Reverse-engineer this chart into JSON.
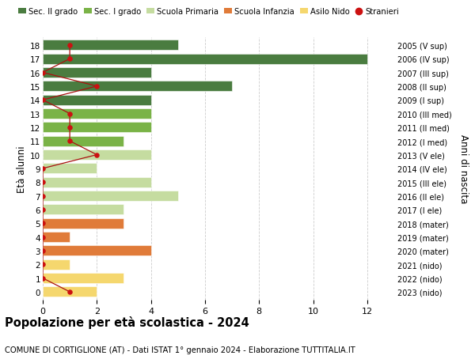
{
  "ages": [
    18,
    17,
    16,
    15,
    14,
    13,
    12,
    11,
    10,
    9,
    8,
    7,
    6,
    5,
    4,
    3,
    2,
    1,
    0
  ],
  "right_labels": [
    "2005 (V sup)",
    "2006 (IV sup)",
    "2007 (III sup)",
    "2008 (II sup)",
    "2009 (I sup)",
    "2010 (III med)",
    "2011 (II med)",
    "2012 (I med)",
    "2013 (V ele)",
    "2014 (IV ele)",
    "2015 (III ele)",
    "2016 (II ele)",
    "2017 (I ele)",
    "2018 (mater)",
    "2019 (mater)",
    "2020 (mater)",
    "2021 (nido)",
    "2022 (nido)",
    "2023 (nido)"
  ],
  "bar_values": [
    5,
    12,
    4,
    7,
    4,
    4,
    4,
    3,
    4,
    2,
    4,
    5,
    3,
    3,
    1,
    4,
    1,
    3,
    2
  ],
  "bar_colors": [
    "#4a7c40",
    "#4a7c40",
    "#4a7c40",
    "#4a7c40",
    "#4a7c40",
    "#7ab347",
    "#7ab347",
    "#7ab347",
    "#c5dca0",
    "#c5dca0",
    "#c5dca0",
    "#c5dca0",
    "#c5dca0",
    "#e07b39",
    "#e07b39",
    "#e07b39",
    "#f5d76e",
    "#f5d76e",
    "#f5d76e"
  ],
  "stranieri_x": [
    1,
    1,
    0,
    2,
    0,
    1,
    1,
    1,
    2,
    0,
    0,
    0,
    0,
    0,
    0,
    0,
    0,
    0,
    1
  ],
  "stranieri_ages": [
    18,
    17,
    16,
    15,
    14,
    13,
    12,
    11,
    10,
    9,
    8,
    7,
    6,
    5,
    4,
    3,
    2,
    1,
    0
  ],
  "legend_labels": [
    "Sec. II grado",
    "Sec. I grado",
    "Scuola Primaria",
    "Scuola Infanzia",
    "Asilo Nido",
    "Stranieri"
  ],
  "legend_colors": [
    "#4a7c40",
    "#7ab347",
    "#c5dca0",
    "#e07b39",
    "#f5d76e",
    "#cc1111"
  ],
  "title": "Popolazione per età scolastica - 2024",
  "subtitle": "COMUNE DI CORTIGLIONE (AT) - Dati ISTAT 1° gennaio 2024 - Elaborazione TUTTITALIA.IT",
  "ylabel_left": "Età alunni",
  "ylabel_right": "Anni di nascita",
  "xlim": [
    0,
    13
  ],
  "xticks": [
    0,
    2,
    4,
    6,
    8,
    10,
    12
  ],
  "bg_color": "#ffffff",
  "grid_color": "#cccccc",
  "bar_height": 0.75,
  "stranieri_color": "#cc1111",
  "stranieri_line_color": "#aa1111"
}
